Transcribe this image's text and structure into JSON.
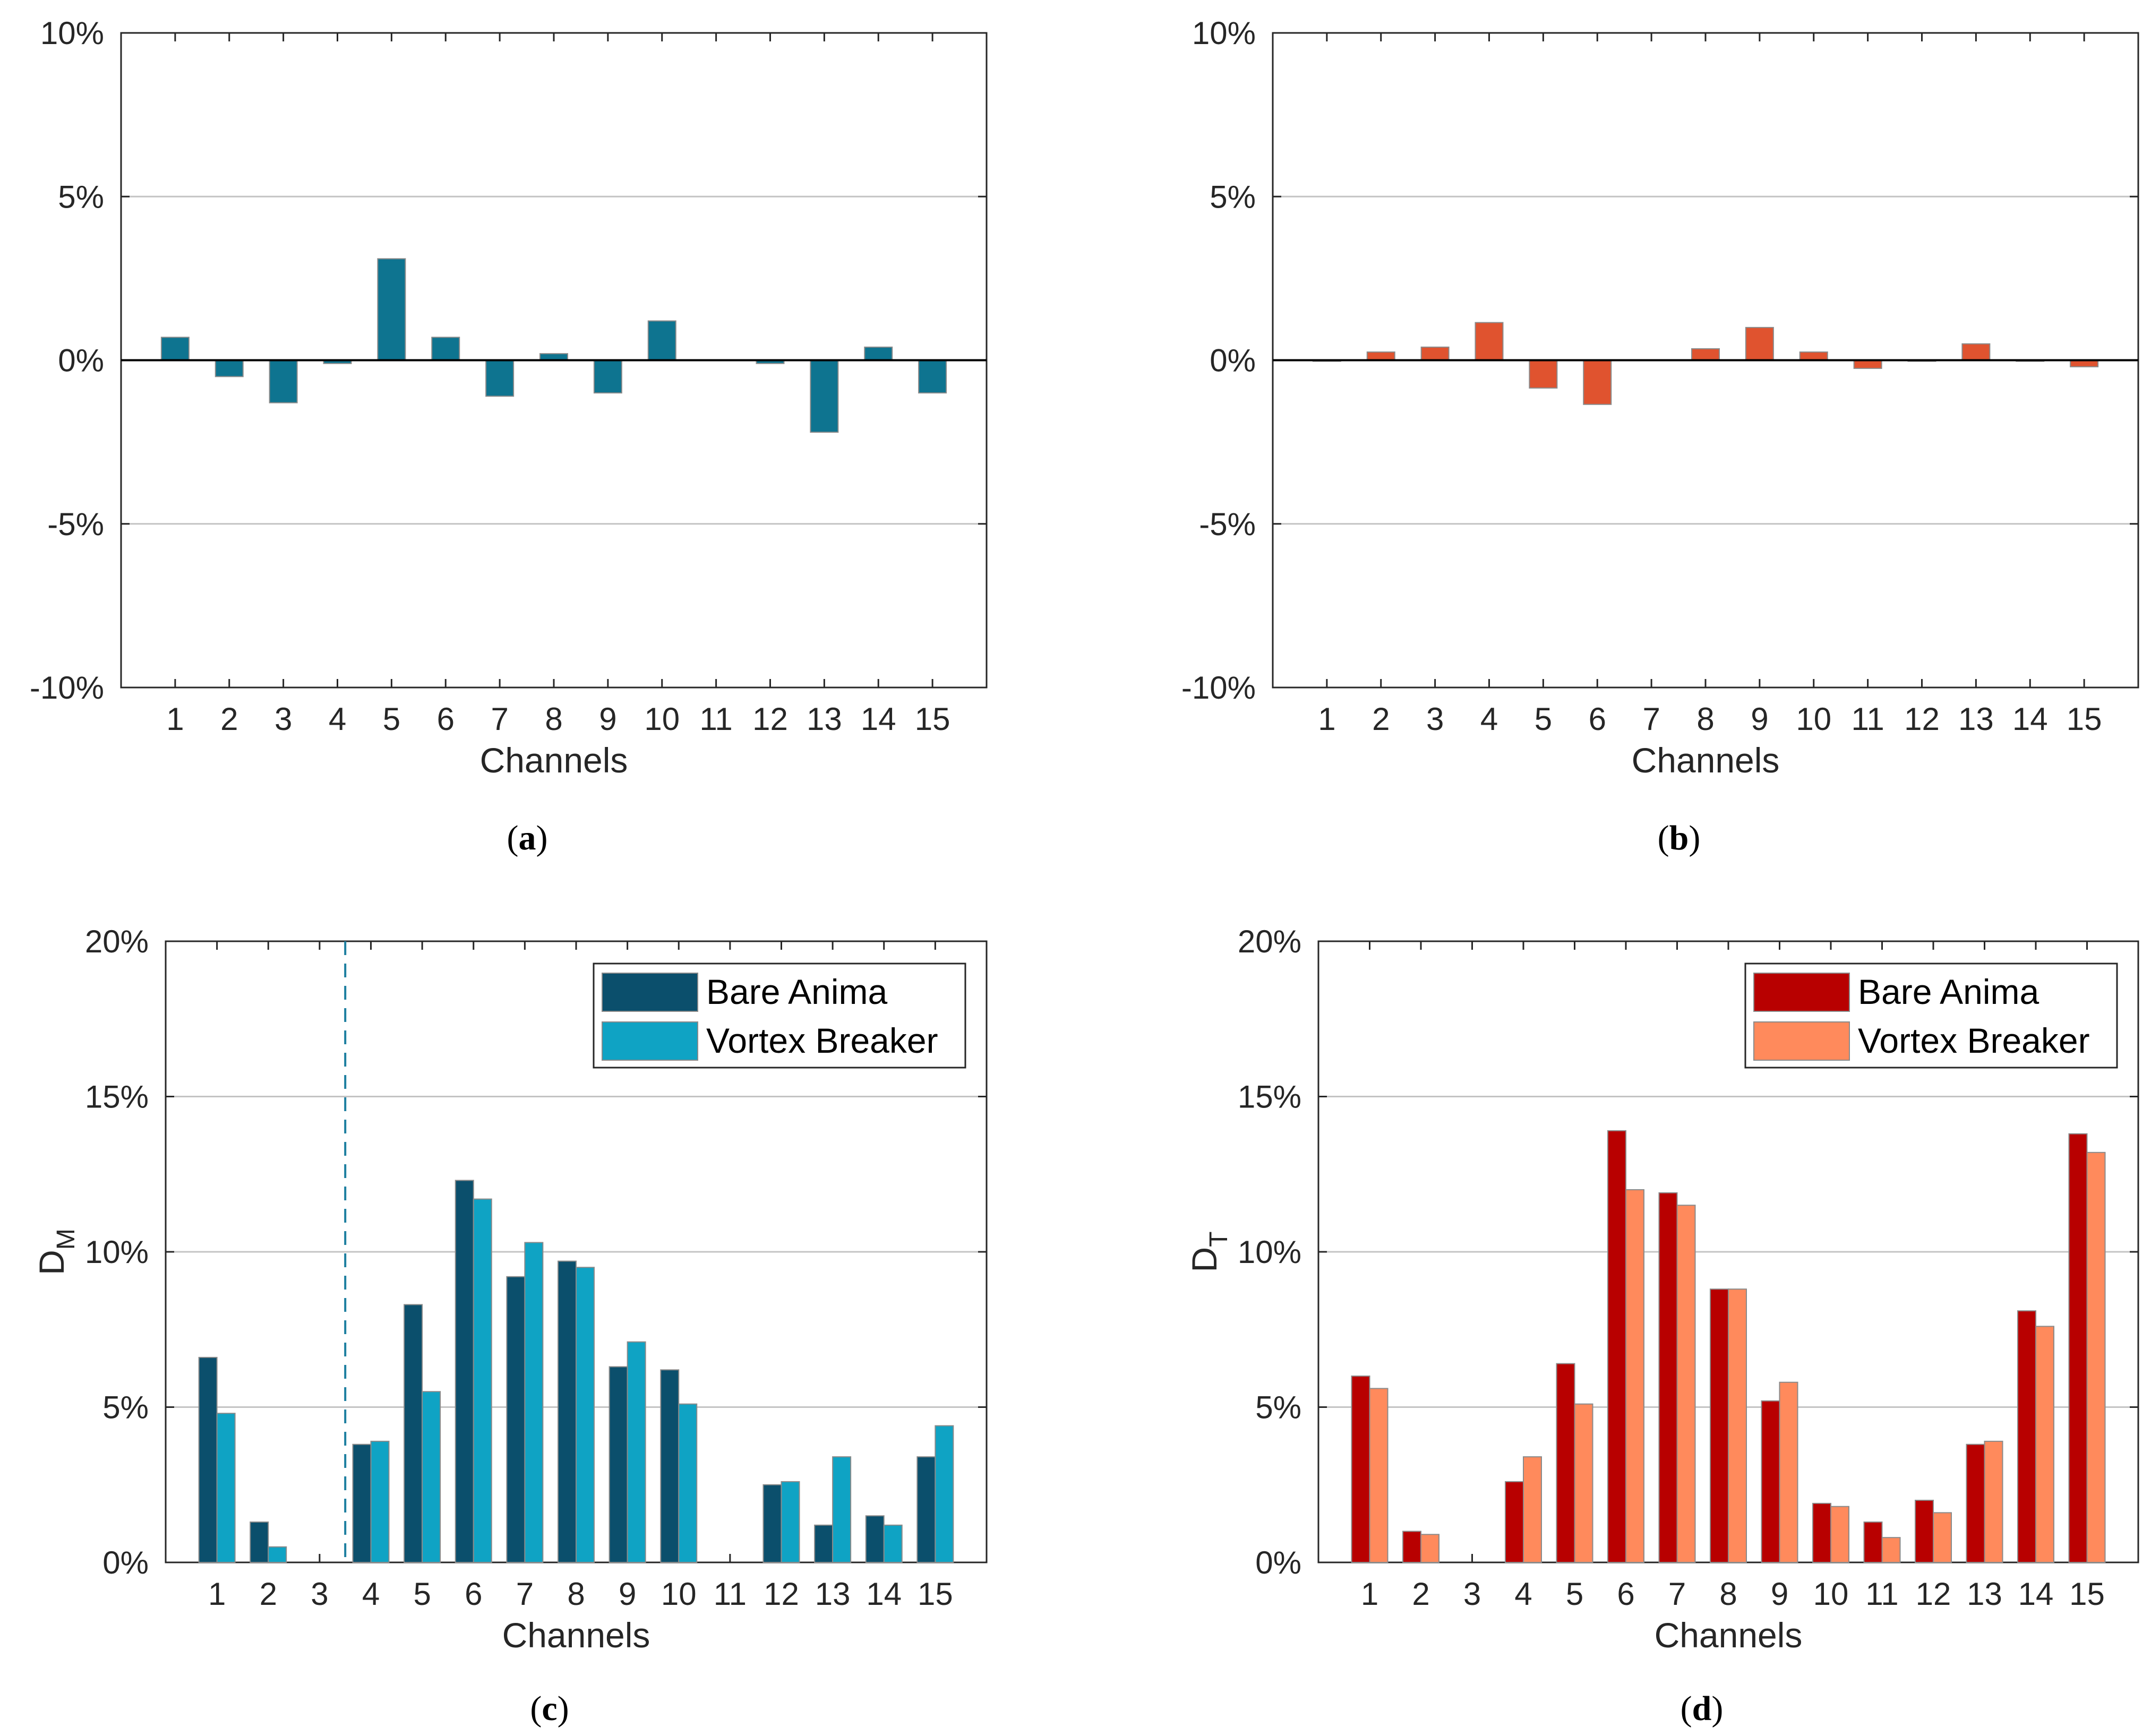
{
  "chart_data": [
    {
      "id": "a",
      "type": "bar",
      "caption_open": "(",
      "caption_letter": "a",
      "caption_close": ")",
      "xlabel": "Channels",
      "ylabel": "",
      "ylim": [
        -10,
        10
      ],
      "yticks": [
        -10,
        -5,
        0,
        5,
        10
      ],
      "ytick_labels": [
        "-10%",
        "-5%",
        "0%",
        "5%",
        "10%"
      ],
      "categories": [
        "1",
        "2",
        "3",
        "4",
        "5",
        "6",
        "7",
        "8",
        "9",
        "10",
        "11",
        "12",
        "13",
        "14",
        "15"
      ],
      "series": [
        {
          "name": "",
          "color": "#0e7490",
          "values": [
            0.7,
            -0.5,
            -1.3,
            -0.1,
            3.1,
            0.7,
            -1.1,
            0.2,
            -1.0,
            1.2,
            0.0,
            -0.1,
            -2.2,
            0.4,
            -1.0
          ]
        }
      ],
      "grid": true,
      "legend": null
    },
    {
      "id": "b",
      "type": "bar",
      "caption_open": "(",
      "caption_letter": "b",
      "caption_close": ")",
      "xlabel": "Channels",
      "ylabel": "",
      "ylim": [
        -10,
        10
      ],
      "yticks": [
        -10,
        -5,
        0,
        5,
        10
      ],
      "ytick_labels": [
        "-10%",
        "-5%",
        "0%",
        "5%",
        "10%"
      ],
      "categories": [
        "1",
        "2",
        "3",
        "4",
        "5",
        "6",
        "7",
        "8",
        "9",
        "10",
        "11",
        "12",
        "13",
        "14",
        "15"
      ],
      "series": [
        {
          "name": "",
          "color": "#e0532f",
          "values": [
            -0.03,
            0.25,
            0.4,
            1.15,
            -0.85,
            -1.35,
            0.0,
            0.35,
            1.0,
            0.25,
            -0.25,
            -0.03,
            0.5,
            -0.03,
            -0.2
          ]
        }
      ],
      "grid": true,
      "legend": null
    },
    {
      "id": "c",
      "type": "bar",
      "caption_open": "(",
      "caption_letter": "c",
      "caption_close": ")",
      "xlabel": "Channels",
      "ylabel_main": "D",
      "ylabel_sub": "M",
      "ylim": [
        0,
        20
      ],
      "yticks": [
        0,
        5,
        10,
        15,
        20
      ],
      "ytick_labels": [
        "0%",
        "5%",
        "10%",
        "15%",
        "20%"
      ],
      "categories": [
        "1",
        "2",
        "3",
        "4",
        "5",
        "6",
        "7",
        "8",
        "9",
        "10",
        "11",
        "12",
        "13",
        "14",
        "15"
      ],
      "series": [
        {
          "name": "Bare Anima",
          "color": "#0b4f6c",
          "values": [
            6.6,
            1.3,
            0.0,
            3.8,
            8.3,
            12.3,
            9.2,
            9.7,
            6.3,
            6.2,
            0.0,
            2.5,
            1.2,
            1.5,
            3.4
          ]
        },
        {
          "name": "Vortex Breaker",
          "color": "#0fa3c4",
          "values": [
            4.8,
            0.5,
            0.0,
            3.9,
            5.5,
            11.7,
            10.3,
            9.5,
            7.1,
            5.1,
            0.0,
            2.6,
            3.4,
            1.2,
            4.4
          ]
        }
      ],
      "vline_after_category": "3",
      "grid": true,
      "legend": "top-right"
    },
    {
      "id": "d",
      "type": "bar",
      "caption_open": "(",
      "caption_letter": "d",
      "caption_close": ")",
      "xlabel": "Channels",
      "ylabel_main": "D",
      "ylabel_sub": "T",
      "ylim": [
        0,
        20
      ],
      "yticks": [
        0,
        5,
        10,
        15,
        20
      ],
      "ytick_labels": [
        "0%",
        "5%",
        "10%",
        "15%",
        "20%"
      ],
      "categories": [
        "1",
        "2",
        "3",
        "4",
        "5",
        "6",
        "7",
        "8",
        "9",
        "10",
        "11",
        "12",
        "13",
        "14",
        "15"
      ],
      "series": [
        {
          "name": "Bare Anima",
          "color": "#b80000",
          "values": [
            6.0,
            1.0,
            0.0,
            2.6,
            6.4,
            13.9,
            11.9,
            8.8,
            5.2,
            1.9,
            1.3,
            2.0,
            3.8,
            8.1,
            13.8
          ]
        },
        {
          "name": "Vortex Breaker",
          "color": "#ff8a5c",
          "values": [
            5.6,
            0.9,
            0.0,
            3.4,
            5.1,
            12.0,
            11.5,
            8.8,
            5.8,
            1.8,
            0.8,
            1.6,
            3.9,
            7.6,
            13.2
          ]
        }
      ],
      "grid": true,
      "legend": "top-right"
    }
  ]
}
